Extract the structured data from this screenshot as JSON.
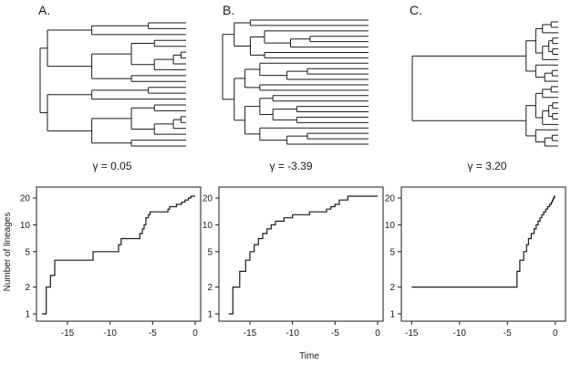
{
  "panels": [
    {
      "letter": "A.",
      "gamma_label": "γ = 0.05"
    },
    {
      "letter": "B.",
      "gamma_label": "γ = -3.39"
    },
    {
      "letter": "C.",
      "gamma_label": "γ = 3.20"
    }
  ],
  "chart_data": [
    {
      "type": "line",
      "title": "A.",
      "annotation": "γ = 0.05",
      "xlabel": "Time",
      "ylabel": "Number of lineages",
      "y_scale": "log",
      "xlim": [
        -18,
        0
      ],
      "ylim": [
        1,
        22
      ],
      "xticks": [
        -15,
        -10,
        -5,
        0
      ],
      "yticks": [
        1,
        2,
        5,
        10,
        20
      ],
      "series": [
        {
          "name": "lineages",
          "x": [
            -18,
            -17.5,
            -17,
            -16.5,
            -12,
            -9,
            -8.7,
            -6.5,
            -6.2,
            -6,
            -5.8,
            -5.5,
            -5.3,
            -3.2,
            -3,
            -2.2,
            -1.6,
            -1.2,
            -0.8,
            -0.5,
            0
          ],
          "y": [
            1,
            2,
            2.7,
            4,
            5,
            6,
            7,
            8,
            9,
            10,
            12,
            13,
            14,
            15,
            16,
            17,
            18,
            19,
            20,
            21,
            21
          ]
        }
      ]
    },
    {
      "type": "line",
      "title": "B.",
      "annotation": "γ = -3.39",
      "xlabel": "Time",
      "ylabel": "Number of lineages",
      "y_scale": "log",
      "xlim": [
        -18,
        0
      ],
      "ylim": [
        1,
        22
      ],
      "xticks": [
        -15,
        -10,
        -5,
        0
      ],
      "yticks": [
        1,
        2,
        5,
        10,
        20
      ],
      "series": [
        {
          "name": "lineages",
          "x": [
            -17.5,
            -17,
            -16.2,
            -15.5,
            -15,
            -14.5,
            -14,
            -13.5,
            -13,
            -12.5,
            -12,
            -11,
            -10,
            -8,
            -6,
            -5.5,
            -5,
            -4.5,
            -3.5,
            0
          ],
          "y": [
            1,
            2,
            3,
            4,
            5,
            6,
            7,
            8,
            9,
            10,
            11,
            12,
            13,
            14,
            15,
            16,
            17,
            19,
            21,
            21
          ]
        }
      ]
    },
    {
      "type": "line",
      "title": "C.",
      "annotation": "γ = 3.20",
      "xlabel": "Time",
      "ylabel": "Number of lineages",
      "y_scale": "log",
      "xlim": [
        -15.5,
        0.5
      ],
      "ylim": [
        1,
        22
      ],
      "xticks": [
        -15,
        -10,
        -5,
        0
      ],
      "yticks": [
        1,
        2,
        5,
        10,
        20
      ],
      "series": [
        {
          "name": "lineages",
          "x": [
            -15,
            -4,
            -3.7,
            -3.3,
            -3,
            -2.8,
            -2.5,
            -2.2,
            -2,
            -1.8,
            -1.6,
            -1.4,
            -1.2,
            -1,
            -0.8,
            -0.6,
            -0.4,
            -0.3,
            -0.2,
            -0.1,
            0
          ],
          "y": [
            2,
            3,
            4,
            5,
            6,
            7,
            8,
            9,
            10,
            11,
            12,
            13,
            14,
            15,
            16,
            17,
            18,
            19,
            20,
            21,
            21
          ]
        }
      ]
    }
  ]
}
